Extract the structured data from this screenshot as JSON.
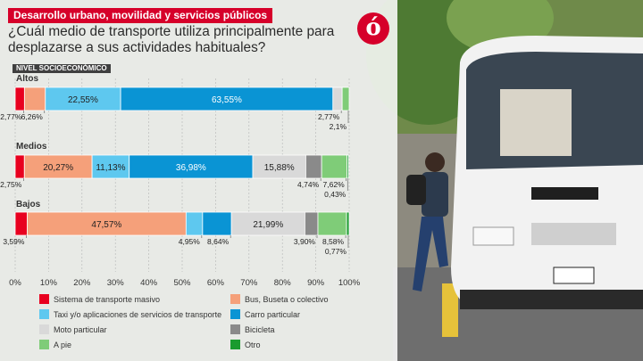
{
  "header": {
    "section_tag": "Desarrollo urbano, movilidad y servicios públicos",
    "question": "¿Cuál medio de transporte utiliza principalmente para desplazarse a sus actividades habituales?",
    "subtitle": "NIVEL SOCIOECONÓMICO",
    "logo_glyph": "ó"
  },
  "colors": {
    "accent": "#d6002a",
    "series": [
      "#e8001f",
      "#f5a07a",
      "#5ec8ef",
      "#0a94d4",
      "#d9d9d9",
      "#8a8a8a",
      "#7fcc78",
      "#1a9b2e"
    ]
  },
  "chart_data": {
    "type": "bar",
    "orientation": "horizontal",
    "stacked": true,
    "categories": [
      "Altos",
      "Medios",
      "Bajos"
    ],
    "series": [
      {
        "name": "Sistema de transporte masivo",
        "values": [
          2.77,
          2.75,
          3.59
        ]
      },
      {
        "name": "Bus, Buseta o colectivo",
        "values": [
          6.26,
          20.27,
          47.57
        ]
      },
      {
        "name": "Taxi y/o aplicaciones de servicios de transporte",
        "values": [
          22.55,
          11.13,
          4.95
        ]
      },
      {
        "name": "Carro particular",
        "values": [
          63.55,
          36.98,
          8.64
        ]
      },
      {
        "name": "Moto particular",
        "values": [
          2.77,
          15.88,
          21.99
        ]
      },
      {
        "name": "Bicicleta",
        "values": [
          0,
          4.74,
          3.9
        ]
      },
      {
        "name": "A pie",
        "values": [
          2.1,
          7.62,
          8.58
        ]
      },
      {
        "name": "Otro",
        "values": [
          0,
          0.43,
          0.77
        ]
      }
    ],
    "labels": [
      [
        {
          "s": 0,
          "text": "2,77%",
          "pos": "below"
        },
        {
          "s": 1,
          "text": "6,26%",
          "pos": "below"
        },
        {
          "s": 2,
          "text": "22,55%",
          "pos": "inside"
        },
        {
          "s": 3,
          "text": "63,55%",
          "pos": "inside"
        },
        {
          "s": 4,
          "text": "2,77%",
          "pos": "below"
        },
        {
          "s": 6,
          "text": "2,1%",
          "pos": "below2"
        }
      ],
      [
        {
          "s": 0,
          "text": "2,75%",
          "pos": "below"
        },
        {
          "s": 1,
          "text": "20,27%",
          "pos": "inside"
        },
        {
          "s": 2,
          "text": "11,13%",
          "pos": "inside"
        },
        {
          "s": 3,
          "text": "36,98%",
          "pos": "inside"
        },
        {
          "s": 4,
          "text": "15,88%",
          "pos": "inside"
        },
        {
          "s": 5,
          "text": "4,74%",
          "pos": "below"
        },
        {
          "s": 6,
          "text": "7,62%",
          "pos": "below"
        },
        {
          "s": 7,
          "text": "0,43%",
          "pos": "below2"
        }
      ],
      [
        {
          "s": 0,
          "text": "3,59%",
          "pos": "below"
        },
        {
          "s": 1,
          "text": "47,57%",
          "pos": "inside"
        },
        {
          "s": 2,
          "text": "4,95%",
          "pos": "below"
        },
        {
          "s": 3,
          "text": "8,64%",
          "pos": "below"
        },
        {
          "s": 4,
          "text": "21,99%",
          "pos": "inside"
        },
        {
          "s": 5,
          "text": "3,90%",
          "pos": "below"
        },
        {
          "s": 6,
          "text": "8,58%",
          "pos": "below"
        },
        {
          "s": 7,
          "text": "0,77%",
          "pos": "below2"
        }
      ]
    ],
    "x_ticks": [
      "0%",
      "10%",
      "20%",
      "30%",
      "40%",
      "50%",
      "60%",
      "70%",
      "80%",
      "90%",
      "100%"
    ],
    "xlim": [
      0,
      100
    ],
    "grid": true,
    "legend_position": "bottom"
  }
}
